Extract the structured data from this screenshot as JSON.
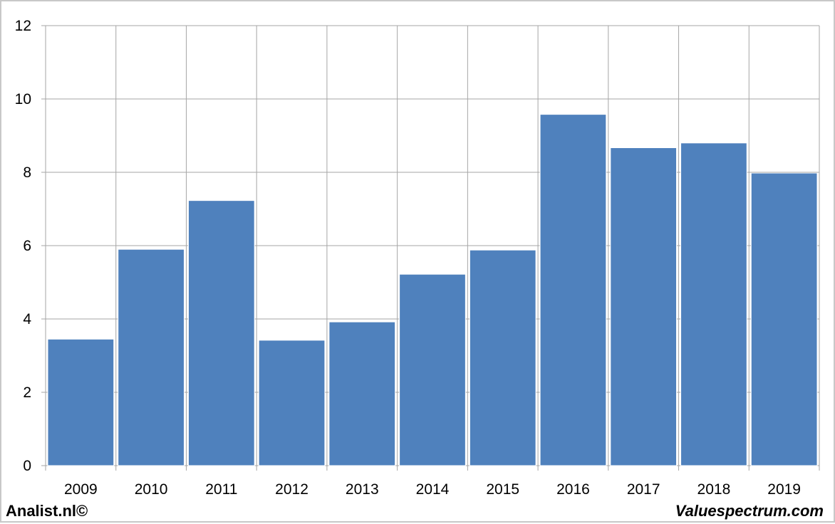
{
  "chart_data": {
    "type": "bar",
    "categories": [
      "2009",
      "2010",
      "2011",
      "2012",
      "2013",
      "2014",
      "2015",
      "2016",
      "2017",
      "2018",
      "2019"
    ],
    "values": [
      3.45,
      5.9,
      7.23,
      3.42,
      3.92,
      5.22,
      5.88,
      9.58,
      8.67,
      8.8,
      7.98
    ],
    "title": "",
    "xlabel": "",
    "ylabel": "",
    "ylim": [
      0,
      12
    ],
    "yticks": [
      "0",
      "2",
      "4",
      "6",
      "8",
      "10",
      "12"
    ],
    "grid": true,
    "bar_color": "#4f81bd",
    "grid_color": "#a6a6a6"
  },
  "footer": {
    "left_text": "Analist.nl©",
    "right_text": "Valuespectrum.com"
  }
}
